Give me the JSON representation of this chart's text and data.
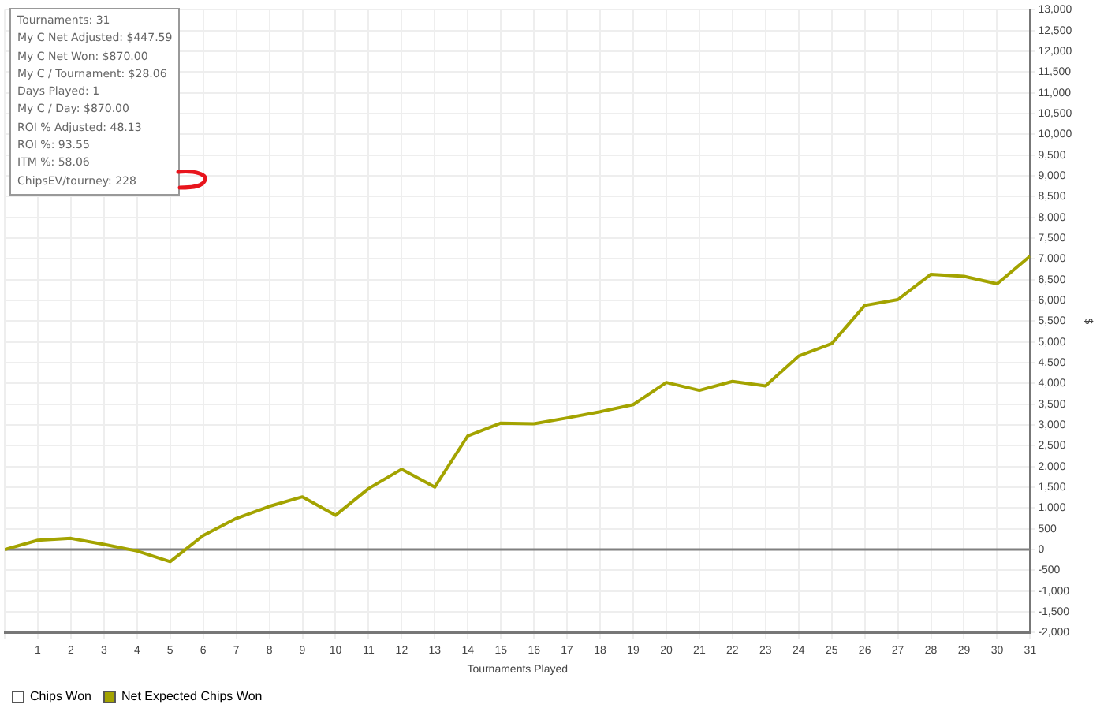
{
  "chart_data": {
    "type": "line",
    "xlabel": "Tournaments Played",
    "ylabel": "$",
    "x": [
      0,
      1,
      2,
      3,
      4,
      5,
      6,
      7,
      8,
      9,
      10,
      11,
      12,
      13,
      14,
      15,
      16,
      17,
      18,
      19,
      20,
      21,
      22,
      23,
      24,
      25,
      26,
      27,
      28,
      29,
      30,
      31
    ],
    "series": [
      {
        "name": "Chips Won",
        "color": "#ffffff",
        "values": [
          null,
          null,
          null,
          null,
          null,
          null,
          null,
          null,
          null,
          null,
          null,
          null,
          null,
          null,
          null,
          null,
          null,
          null,
          null,
          null,
          null,
          null,
          null,
          null,
          null,
          null,
          null,
          null,
          null,
          null,
          null,
          null
        ]
      },
      {
        "name": "Net Expected Chips Won",
        "color": "#a3a300",
        "values": [
          0,
          225,
          270,
          125,
          -35,
          -290,
          340,
          750,
          1040,
          1270,
          825,
          1470,
          1935,
          1505,
          2740,
          3045,
          3030,
          3170,
          3320,
          3490,
          4025,
          3835,
          4050,
          3940,
          4660,
          4960,
          5880,
          6020,
          6630,
          6580,
          6400,
          7070
        ]
      }
    ],
    "xlim": [
      0,
      31
    ],
    "xticks": [
      {
        "value": 0,
        "label": null
      },
      1,
      2,
      3,
      4,
      5,
      6,
      7,
      8,
      9,
      10,
      11,
      12,
      13,
      14,
      15,
      16,
      17,
      18,
      19,
      20,
      21,
      22,
      23,
      24,
      25,
      26,
      27,
      28,
      29,
      30,
      31
    ],
    "ylim": [
      -2000,
      13000
    ],
    "yticks": [
      {
        "value": -2000,
        "label": "-2,000"
      },
      {
        "value": -1500,
        "label": "-1,500"
      },
      {
        "value": -1000,
        "label": "-1,000"
      },
      -500,
      0,
      500,
      {
        "value": 1000,
        "label": "1,000"
      },
      {
        "value": 1500,
        "label": "1,500"
      },
      {
        "value": 2000,
        "label": "2,000"
      },
      {
        "value": 2500,
        "label": "2,500"
      },
      {
        "value": 3000,
        "label": "3,000"
      },
      {
        "value": 3500,
        "label": "3,500"
      },
      {
        "value": 4000,
        "label": "4,000"
      },
      {
        "value": 4500,
        "label": "4,500"
      },
      {
        "value": 5000,
        "label": "5,000"
      },
      {
        "value": 5500,
        "label": "5,500"
      },
      {
        "value": 6000,
        "label": "6,000"
      },
      {
        "value": 6500,
        "label": "6,500"
      },
      {
        "value": 7000,
        "label": "7,000"
      },
      {
        "value": 7500,
        "label": "7,500"
      },
      {
        "value": 8000,
        "label": "8,000"
      },
      {
        "value": 8500,
        "label": "8,500"
      },
      {
        "value": 9000,
        "label": "9,000"
      },
      {
        "value": 9500,
        "label": "9,500"
      },
      {
        "value": 10000,
        "label": "10,000"
      },
      {
        "value": 10500,
        "label": "10,500"
      },
      {
        "value": 11000,
        "label": "11,000"
      },
      {
        "value": 11500,
        "label": "11,500"
      },
      {
        "value": 12000,
        "label": "12,000"
      },
      {
        "value": 12500,
        "label": "12,500"
      },
      {
        "value": 13000,
        "label": "13,000"
      }
    ],
    "ref_lines": [
      {
        "axis": "y",
        "value": 0,
        "color": "#808080"
      }
    ],
    "grid": true,
    "legend": "bottom left",
    "marker": "none",
    "line_style": "solid",
    "annotations": [
      "Tournaments: 31",
      "My C Net Adjusted: $447.59",
      "My C Net Won: $870.00",
      "My C / Tournament: $28.06",
      "Days Played: 1",
      "My C / Day: $870.00",
      "ROI % Adjusted: 48.13",
      "ROI %: 93.55",
      "ITM %: 58.06",
      "ChipsEV/tourney: 228"
    ]
  }
}
